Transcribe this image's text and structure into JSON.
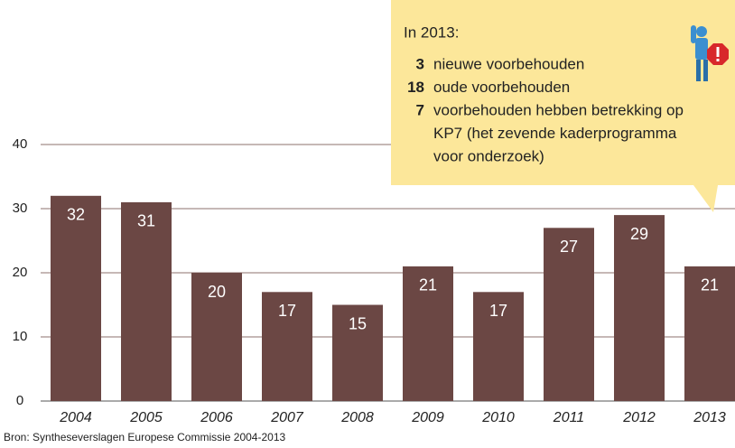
{
  "chart_data": {
    "type": "bar",
    "categories": [
      "2004",
      "2005",
      "2006",
      "2007",
      "2008",
      "2009",
      "2010",
      "2011",
      "2012",
      "2013"
    ],
    "values": [
      32,
      31,
      20,
      17,
      15,
      21,
      17,
      27,
      29,
      21
    ],
    "color": "#6b4744",
    "ylim": [
      0,
      40
    ],
    "yticks": [
      0,
      10,
      20,
      30,
      40
    ],
    "grid": true,
    "source": "Bron: Syntheseverslagen Europese Commissie 2004-2013",
    "annotation": {
      "title": "In 2013:",
      "items": [
        {
          "value": 3,
          "lines": [
            "nieuwe voorbehouden"
          ]
        },
        {
          "value": 18,
          "lines": [
            "oude voorbehouden"
          ]
        },
        {
          "value": 7,
          "lines": [
            "voorbehouden hebben betrekking op",
            "KP7 (het zevende kaderprogramma",
            "voor onderzoek)"
          ]
        }
      ]
    }
  }
}
